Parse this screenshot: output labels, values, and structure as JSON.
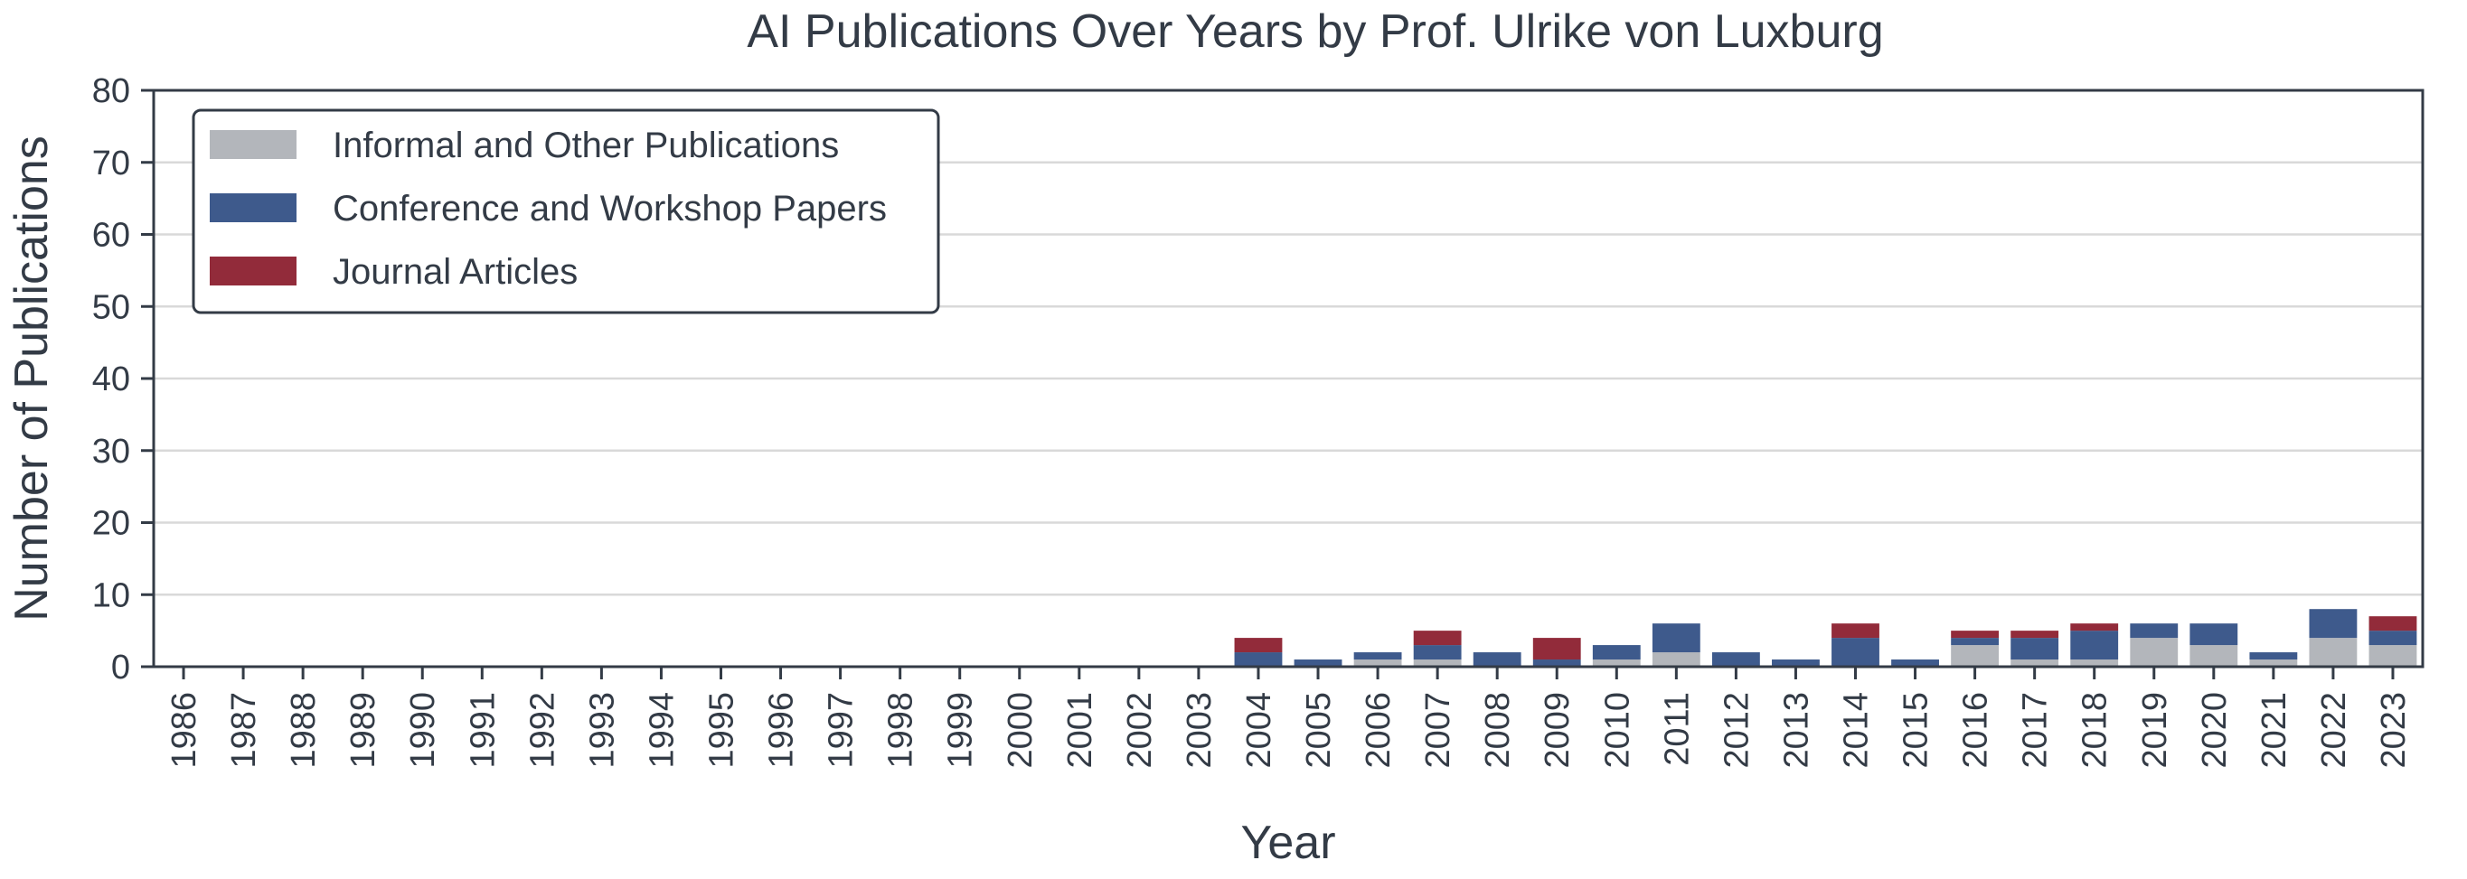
{
  "chart_data": {
    "type": "bar",
    "stacked": true,
    "title": "AI Publications Over Years by Prof. Ulrike von Luxburg",
    "xlabel": "Year",
    "ylabel": "Number of Publications",
    "ylim": [
      0,
      80
    ],
    "yticks": [
      0,
      10,
      20,
      30,
      40,
      50,
      60,
      70,
      80
    ],
    "grid": "horizontal",
    "legend_position": "top-left",
    "categories": [
      "1986",
      "1987",
      "1988",
      "1989",
      "1990",
      "1991",
      "1992",
      "1993",
      "1994",
      "1995",
      "1996",
      "1997",
      "1998",
      "1999",
      "2000",
      "2001",
      "2002",
      "2003",
      "2004",
      "2005",
      "2006",
      "2007",
      "2008",
      "2009",
      "2010",
      "2011",
      "2012",
      "2013",
      "2014",
      "2015",
      "2016",
      "2017",
      "2018",
      "2019",
      "2020",
      "2021",
      "2022",
      "2023"
    ],
    "series": [
      {
        "name": "Informal and Other Publications",
        "color": "#b3b6bb",
        "values": [
          0,
          0,
          0,
          0,
          0,
          0,
          0,
          0,
          0,
          0,
          0,
          0,
          0,
          0,
          0,
          0,
          0,
          0,
          0,
          0,
          1,
          1,
          0,
          0,
          1,
          2,
          0,
          0,
          0,
          0,
          3,
          1,
          1,
          4,
          3,
          1,
          4,
          3
        ]
      },
      {
        "name": "Conference and Workshop Papers",
        "color": "#3e5a8c",
        "values": [
          0,
          0,
          0,
          0,
          0,
          0,
          0,
          0,
          0,
          0,
          0,
          0,
          0,
          0,
          0,
          0,
          0,
          0,
          2,
          1,
          1,
          2,
          2,
          1,
          2,
          4,
          2,
          1,
          4,
          1,
          1,
          3,
          4,
          2,
          3,
          1,
          4,
          2
        ]
      },
      {
        "name": "Journal Articles",
        "color": "#922b3a",
        "values": [
          0,
          0,
          0,
          0,
          0,
          0,
          0,
          0,
          0,
          0,
          0,
          0,
          0,
          0,
          0,
          0,
          0,
          0,
          2,
          0,
          0,
          2,
          0,
          3,
          0,
          0,
          0,
          0,
          2,
          0,
          1,
          1,
          1,
          0,
          0,
          0,
          0,
          2
        ]
      }
    ]
  }
}
